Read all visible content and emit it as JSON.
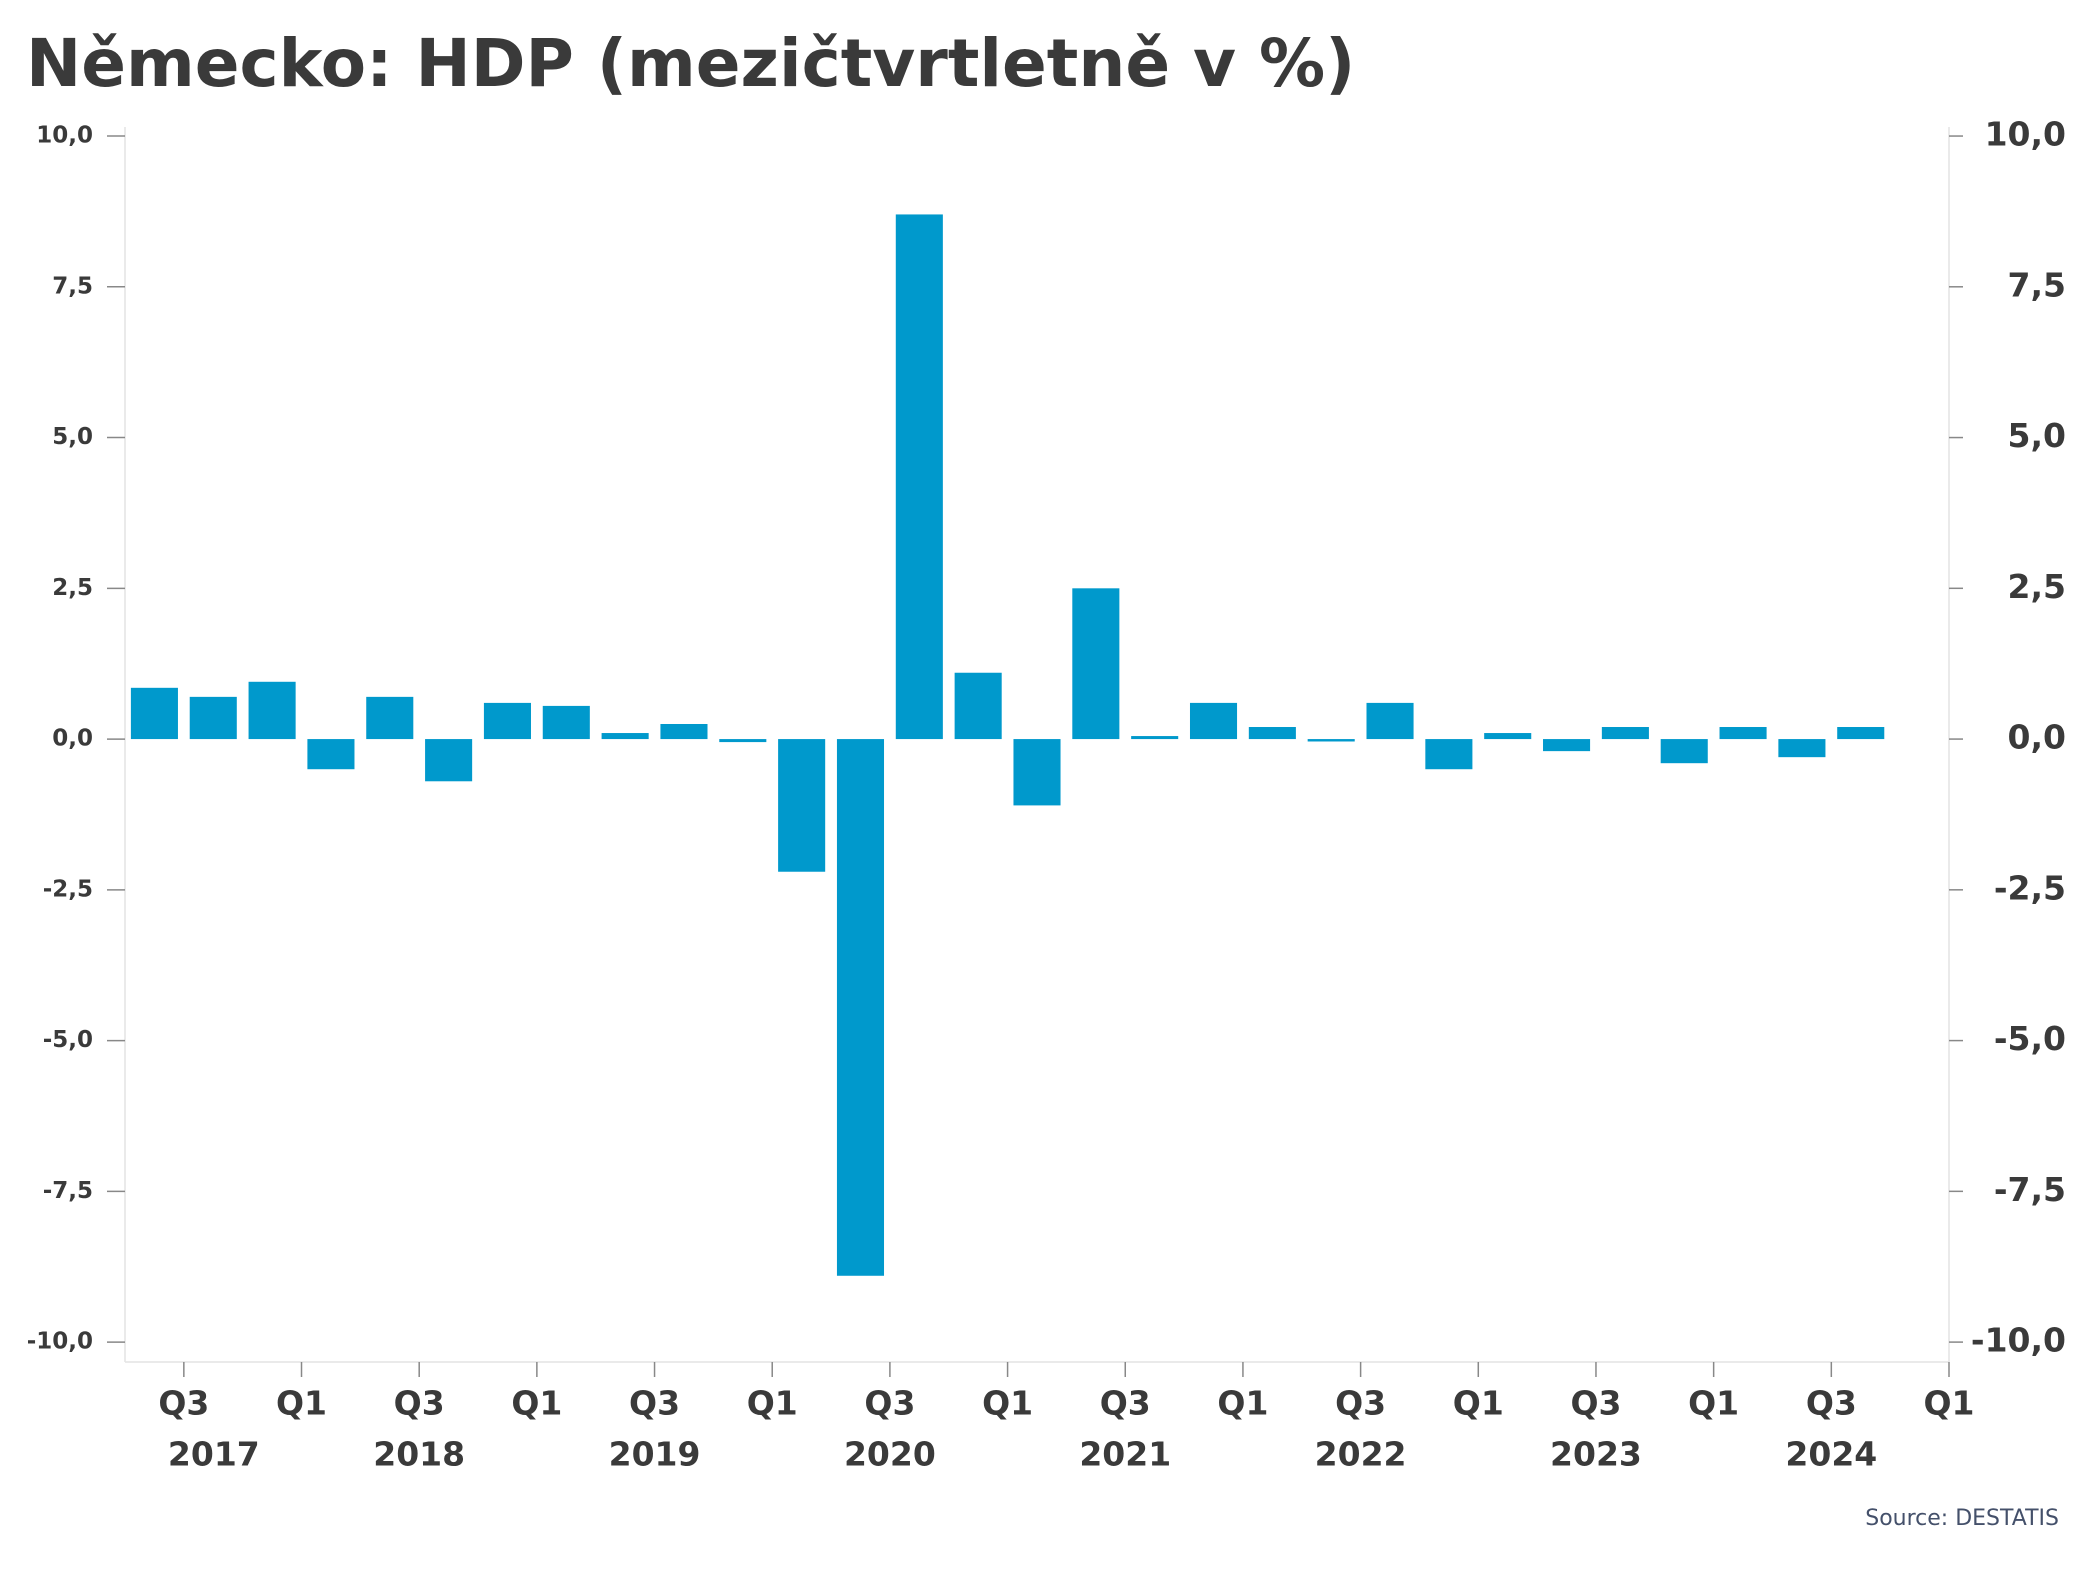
{
  "chart_data": {
    "type": "bar",
    "title": "Německo: HDP (mezičtvrtletně v %)",
    "source": "Source: DESTATIS",
    "values": [
      0.85,
      0.7,
      0.95,
      -0.5,
      0.7,
      -0.7,
      0.6,
      0.55,
      0.1,
      0.25,
      -0.05,
      -2.2,
      -8.9,
      8.7,
      1.1,
      -1.1,
      2.5,
      0.05,
      0.6,
      0.2,
      -0.04,
      0.6,
      -0.5,
      0.1,
      -0.2,
      0.2,
      -0.4,
      0.2,
      -0.3,
      0.2
    ],
    "color": "#0099cc",
    "x_tick_labels": [
      "Q3",
      "Q1",
      "Q3",
      "Q1",
      "Q3",
      "Q1",
      "Q3",
      "Q1",
      "Q3",
      "Q1",
      "Q3",
      "Q1",
      "Q3",
      "Q1",
      "Q3",
      "Q1"
    ],
    "x_year_labels": [
      "2017",
      "2018",
      "2019",
      "2020",
      "2021",
      "2022",
      "2023",
      "2024"
    ],
    "ylim": [
      -10.33,
      10.15
    ],
    "yticks": [
      {
        "value": 10,
        "label": "10,0"
      },
      {
        "value": 7.5,
        "label": "7,5"
      },
      {
        "value": 5,
        "label": "5,0"
      },
      {
        "value": 2.5,
        "label": "2,5"
      },
      {
        "value": 0,
        "label": "0,0"
      },
      {
        "value": -2.5,
        "label": "-2,5"
      },
      {
        "value": -5,
        "label": "-5,0"
      },
      {
        "value": -7.5,
        "label": "-7,5"
      },
      {
        "value": -10,
        "label": "-10,0"
      }
    ]
  }
}
